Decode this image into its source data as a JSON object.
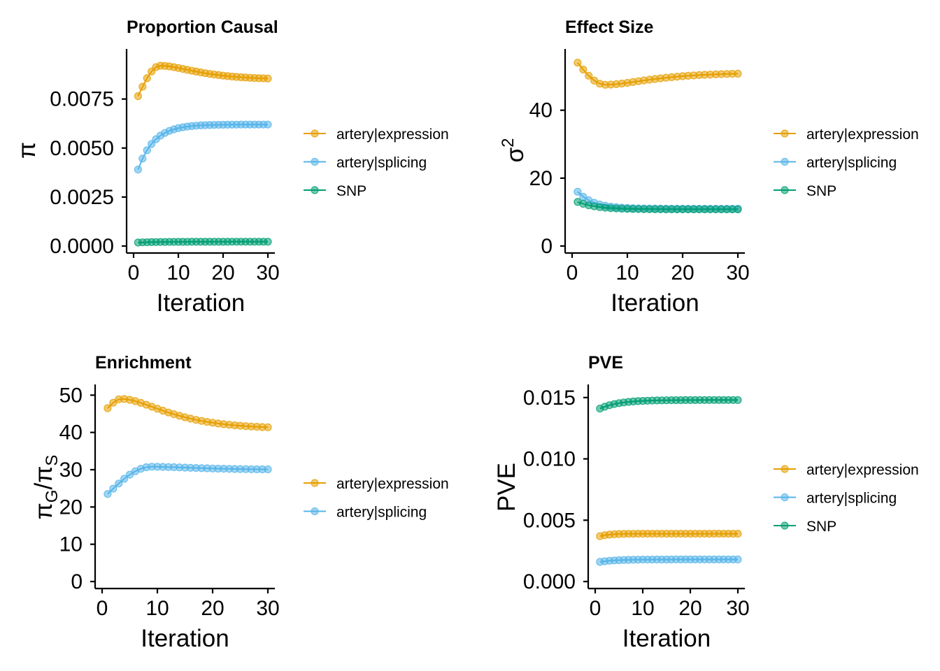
{
  "colors": {
    "expression": "#E69F00",
    "splicing": "#56B4E9",
    "snp": "#009E73"
  },
  "chart_data": [
    {
      "type": "line",
      "title": "Proportion Causal",
      "xlabel": "Iteration",
      "ylabel": "π",
      "xlim": [
        0,
        30
      ],
      "ylim": [
        0,
        0.0097
      ],
      "xticks": [
        0,
        10,
        20,
        30
      ],
      "xtick_labels": [
        "0",
        "10",
        "20",
        "30"
      ],
      "yticks": [
        0,
        0.0025,
        0.005,
        0.0075
      ],
      "ytick_labels": [
        "0.0000",
        "0.0025",
        "0.0050",
        "0.0075"
      ],
      "legend": "right",
      "series": [
        {
          "name": "artery|expression",
          "color": "#E69F00",
          "start": 0.00765,
          "peak": 0.0092,
          "peak_at": 6,
          "end": 0.0085
        },
        {
          "name": "artery|splicing",
          "color": "#56B4E9",
          "start": 0.0039,
          "end": 0.0062,
          "rate": 0.28
        },
        {
          "name": "SNP",
          "color": "#009E73",
          "start": 0.00018,
          "end": 0.00022,
          "rate": 0.2
        }
      ]
    },
    {
      "type": "line",
      "title": "Effect Size",
      "xlabel": "Iteration",
      "ylabel": "σ",
      "ylabel_sup": "2",
      "xlim": [
        0,
        30
      ],
      "ylim": [
        0,
        56
      ],
      "xticks": [
        0,
        10,
        20,
        30
      ],
      "xtick_labels": [
        "0",
        "10",
        "20",
        "30"
      ],
      "yticks": [
        0,
        20,
        40
      ],
      "ytick_labels": [
        "0",
        "20",
        "40"
      ],
      "legend": "right",
      "series": [
        {
          "name": "artery|expression",
          "color": "#E69F00",
          "start": 54,
          "trough": 47.5,
          "trough_at": 6,
          "end": 51
        },
        {
          "name": "artery|splicing",
          "color": "#56B4E9",
          "start": 16,
          "end": 11,
          "rate": 0.35
        },
        {
          "name": "SNP",
          "color": "#009E73",
          "start": 13,
          "end": 10.8,
          "rate": 0.3
        }
      ]
    },
    {
      "type": "line",
      "title": "Enrichment",
      "xlabel": "Iteration",
      "ylabel": "π",
      "ylabel_sub1": "G",
      "ylabel_mid": "/π",
      "ylabel_sub2": "S",
      "xlim": [
        0,
        30
      ],
      "ylim": [
        0,
        51
      ],
      "xticks": [
        0,
        10,
        20,
        30
      ],
      "xtick_labels": [
        "0",
        "10",
        "20",
        "30"
      ],
      "yticks": [
        0,
        10,
        20,
        30,
        40,
        50
      ],
      "ytick_labels": [
        "0",
        "10",
        "20",
        "30",
        "40",
        "50"
      ],
      "legend": "right",
      "series": [
        {
          "name": "artery|expression",
          "color": "#E69F00",
          "start": 46.5,
          "peak": 49,
          "peak_at": 3.5,
          "end": 41
        },
        {
          "name": "artery|splicing",
          "color": "#56B4E9",
          "start": 23.5,
          "peak": 30.8,
          "peak_at": 9,
          "end": 30
        }
      ]
    },
    {
      "type": "line",
      "title": "PVE",
      "xlabel": "Iteration",
      "ylabel": "PVE",
      "xlim": [
        0,
        30
      ],
      "ylim": [
        0,
        0.0155
      ],
      "xticks": [
        0,
        10,
        20,
        30
      ],
      "xtick_labels": [
        "0",
        "10",
        "20",
        "30"
      ],
      "yticks": [
        0,
        0.005,
        0.01,
        0.015
      ],
      "ytick_labels": [
        "0.000",
        "0.005",
        "0.010",
        "0.015"
      ],
      "legend": "right",
      "series": [
        {
          "name": "artery|expression",
          "color": "#E69F00",
          "start": 0.0037,
          "end": 0.0039,
          "rate": 0.5
        },
        {
          "name": "artery|splicing",
          "color": "#56B4E9",
          "start": 0.0016,
          "end": 0.0018,
          "rate": 0.3
        },
        {
          "name": "SNP",
          "color": "#009E73",
          "start": 0.0141,
          "end": 0.0148,
          "rate": 0.25
        }
      ]
    }
  ]
}
